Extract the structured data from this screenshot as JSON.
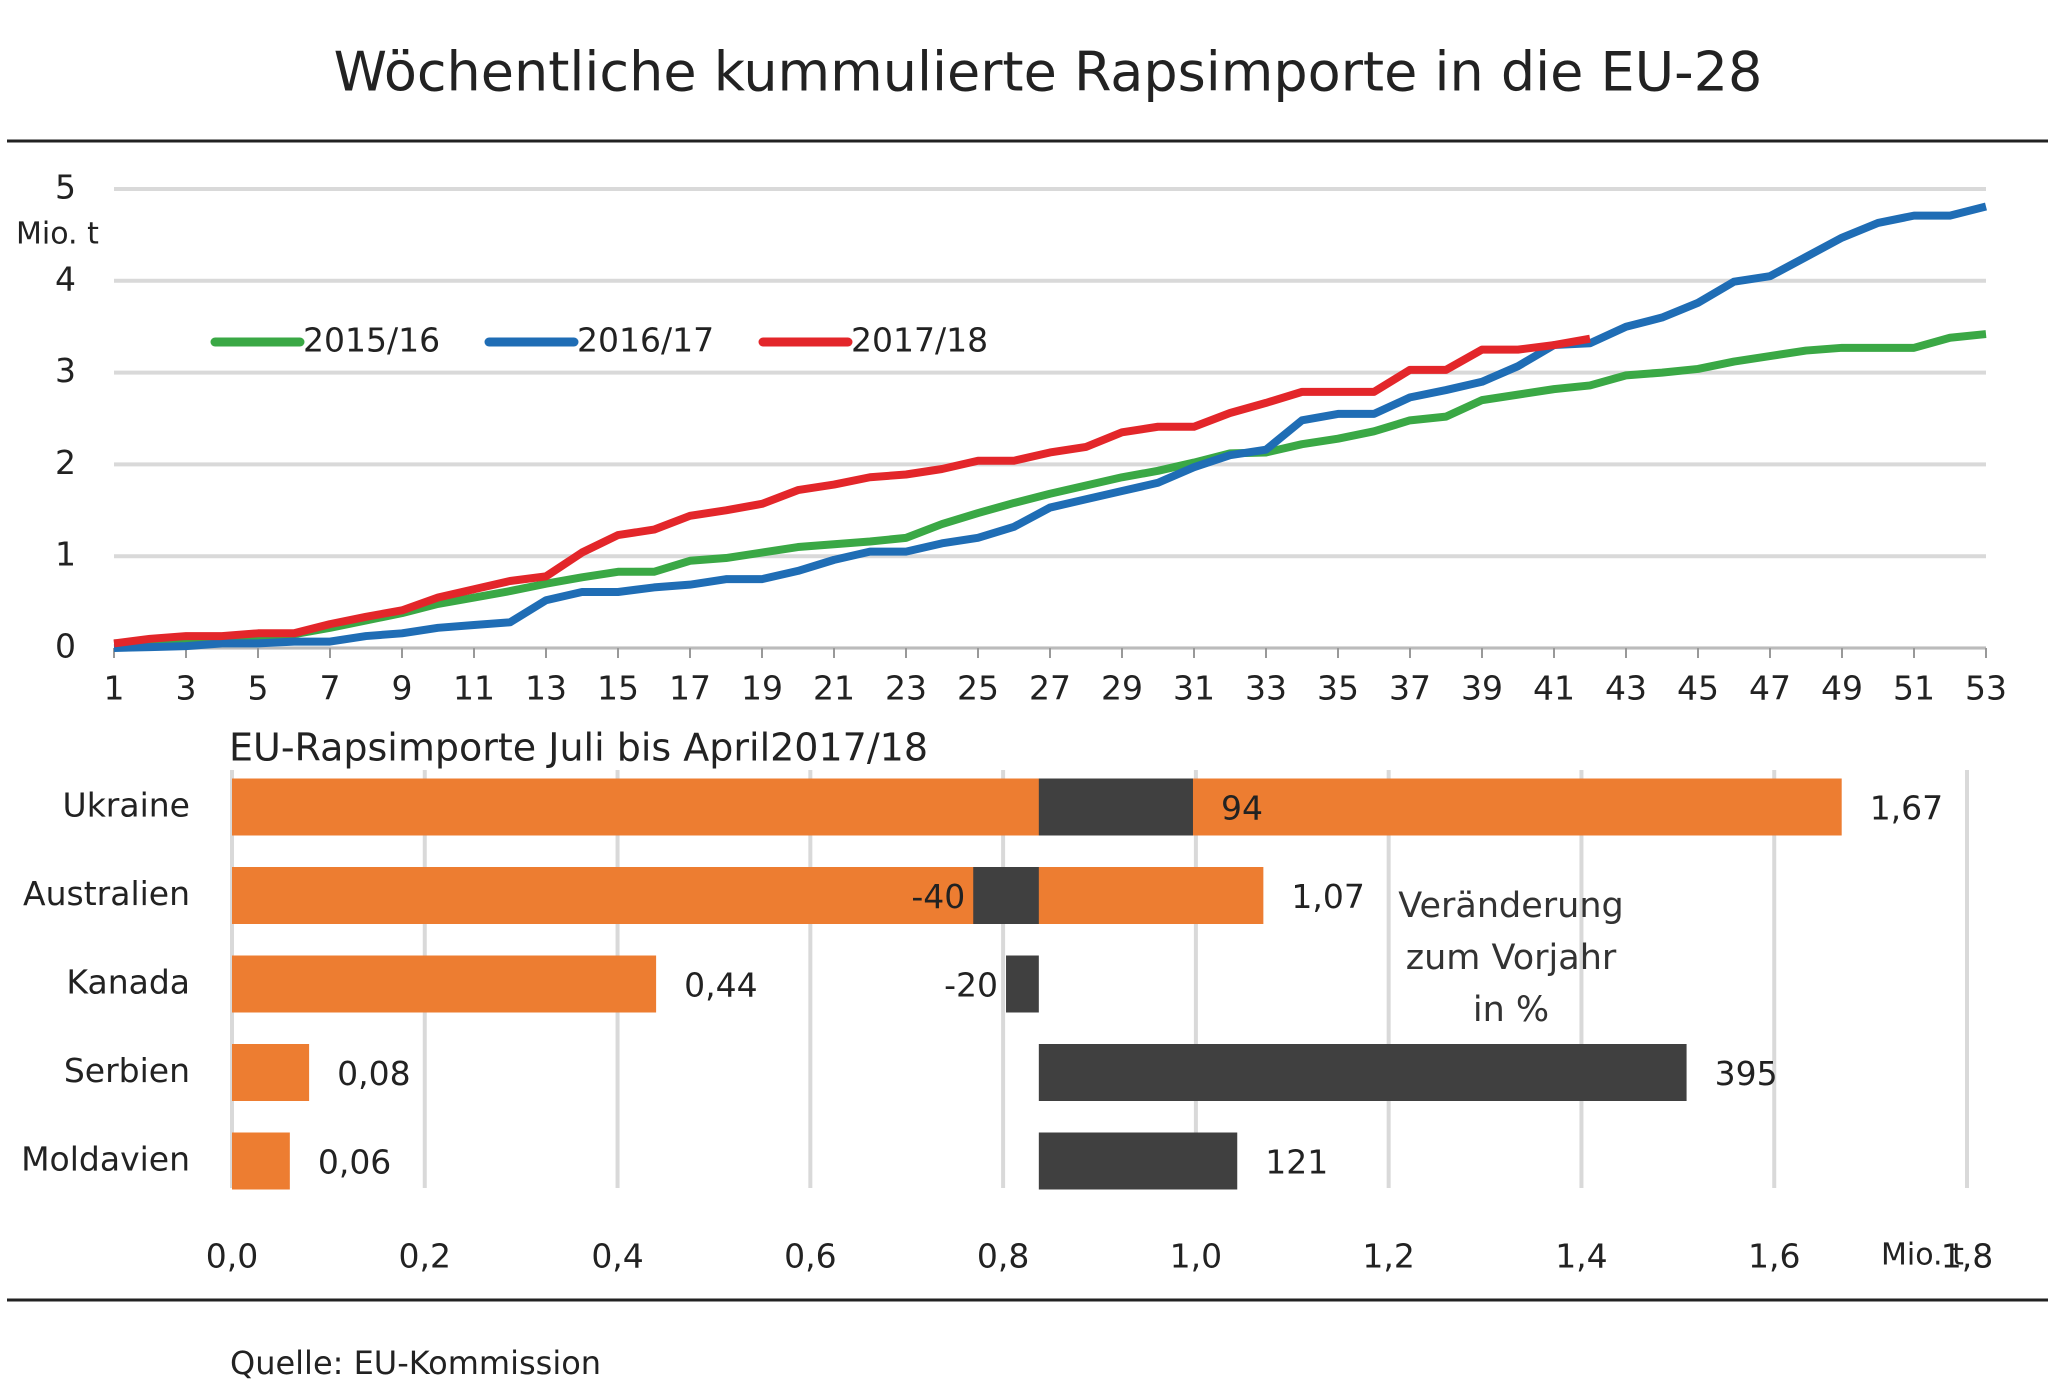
{
  "title": "Wöchentliche kummulierte Rapsimporte in die EU-28",
  "source": "Quelle: EU-Kommission",
  "chart_data": [
    {
      "type": "line",
      "y_label": "Mio. t",
      "x": [
        1,
        2,
        3,
        4,
        5,
        6,
        7,
        8,
        9,
        10,
        11,
        12,
        13,
        14,
        15,
        16,
        17,
        18,
        19,
        20,
        21,
        22,
        23,
        24,
        25,
        26,
        27,
        28,
        29,
        30,
        31,
        32,
        33,
        34,
        35,
        36,
        37,
        38,
        39,
        40,
        41,
        42,
        43,
        44,
        45,
        46,
        47,
        48,
        49,
        50,
        51,
        52,
        53
      ],
      "series": [
        {
          "name": "2015/16",
          "color": "#3aa845",
          "values": [
            0.05,
            0.05,
            0.08,
            0.1,
            0.12,
            0.15,
            0.22,
            0.3,
            0.38,
            0.48,
            0.55,
            0.62,
            0.7,
            0.77,
            0.83,
            0.83,
            0.95,
            0.98,
            1.04,
            1.1,
            1.13,
            1.16,
            1.2,
            1.35,
            1.47,
            1.58,
            1.68,
            1.77,
            1.86,
            1.93,
            2.02,
            2.12,
            2.13,
            2.22,
            2.28,
            2.36,
            2.48,
            2.52,
            2.7,
            2.76,
            2.82,
            2.86,
            2.97,
            3.0,
            3.04,
            3.12,
            3.18,
            3.24,
            3.27,
            3.27,
            3.27,
            3.38,
            3.42
          ]
        },
        {
          "name": "2016/17",
          "color": "#1f6db5",
          "values": [
            0.0,
            0.01,
            0.02,
            0.05,
            0.05,
            0.07,
            0.07,
            0.13,
            0.16,
            0.22,
            0.25,
            0.28,
            0.52,
            0.61,
            0.61,
            0.66,
            0.69,
            0.75,
            0.75,
            0.84,
            0.96,
            1.05,
            1.05,
            1.14,
            1.2,
            1.32,
            1.53,
            1.62,
            1.71,
            1.8,
            1.97,
            2.1,
            2.16,
            2.48,
            2.55,
            2.55,
            2.73,
            2.81,
            2.9,
            3.07,
            3.3,
            3.32,
            3.5,
            3.6,
            3.76,
            3.99,
            4.05,
            4.26,
            4.47,
            4.63,
            4.71,
            4.71,
            4.81
          ]
        },
        {
          "name": "2017/18",
          "color": "#e3262a",
          "values": [
            0.05,
            0.1,
            0.13,
            0.13,
            0.16,
            0.16,
            0.26,
            0.34,
            0.41,
            0.55,
            0.64,
            0.73,
            0.78,
            1.04,
            1.23,
            1.29,
            1.44,
            1.5,
            1.57,
            1.72,
            1.78,
            1.86,
            1.89,
            1.95,
            2.04,
            2.04,
            2.13,
            2.19,
            2.35,
            2.41,
            2.41,
            2.56,
            2.67,
            2.79,
            2.79,
            2.79,
            3.03,
            3.03,
            3.25,
            3.25,
            3.3,
            3.37,
            null,
            null,
            null,
            null,
            null,
            null,
            null,
            null,
            null,
            null,
            null
          ]
        }
      ],
      "xlim": [
        1,
        53
      ],
      "xticks": [
        1,
        3,
        5,
        7,
        9,
        11,
        13,
        15,
        17,
        19,
        21,
        23,
        25,
        27,
        29,
        31,
        33,
        35,
        37,
        39,
        41,
        43,
        45,
        47,
        49,
        51,
        53
      ],
      "ylim": [
        0,
        5
      ],
      "yticks": [
        0,
        1,
        2,
        3,
        4,
        5
      ],
      "grid": true,
      "legend": "top-left"
    },
    {
      "type": "bar",
      "orientation": "horizontal",
      "title": "EU-Rapsimporte Juli bis April2017/18",
      "x_label": "Mio. t",
      "categories": [
        "Ukraine",
        "Australien",
        "Kanada",
        "Serbien",
        "Moldavien"
      ],
      "series": [
        {
          "color": "#ed7d31",
          "values": [
            1.67,
            1.07,
            0.44,
            0.08,
            0.06
          ],
          "value_labels": [
            "1,67",
            "1,07",
            "0,44",
            "0,08",
            "0,06"
          ]
        },
        {
          "name": "Veränderung zum Vorjahr in %",
          "color": "#404040",
          "axis": "x2",
          "values": [
            94,
            -40,
            -20,
            395,
            121
          ]
        }
      ],
      "xlim": [
        0,
        1.8
      ],
      "xticks": [
        {
          "value": 0,
          "label": "0,0"
        },
        {
          "value": 0.2,
          "label": "0,2"
        },
        {
          "value": 0.4,
          "label": "0,4"
        },
        {
          "value": 0.6,
          "label": "0,6"
        },
        {
          "value": 0.8,
          "label": "0,8"
        },
        {
          "value": 1.0,
          "label": "1,0"
        },
        {
          "value": 1.2,
          "label": "1,2"
        },
        {
          "value": 1.4,
          "label": "1,4"
        },
        {
          "value": 1.6,
          "label": "1,6"
        },
        {
          "value": 1.8,
          "label": "1,8"
        }
      ],
      "x2lim": [
        -492,
        566
      ],
      "grid": true
    }
  ]
}
